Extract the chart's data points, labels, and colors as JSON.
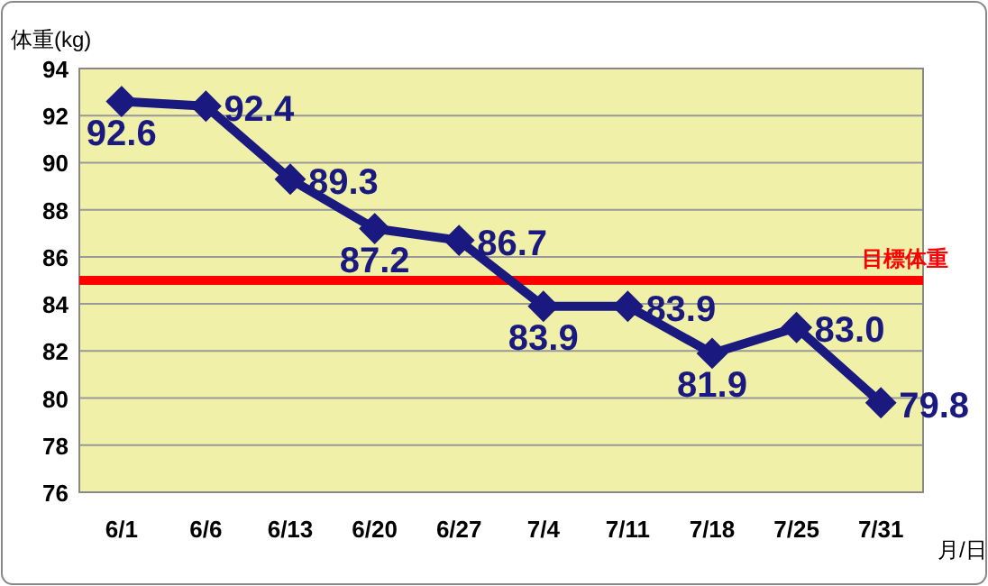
{
  "chart_data": {
    "type": "line",
    "ylabel": "体重(kg)",
    "xlabel": "月/日",
    "categories": [
      "6/1",
      "6/6",
      "6/13",
      "6/20",
      "6/27",
      "7/4",
      "7/11",
      "7/18",
      "7/25",
      "7/31"
    ],
    "series": [
      {
        "color": "#191980",
        "values": [
          92.6,
          92.4,
          89.3,
          87.2,
          86.7,
          83.9,
          83.9,
          81.9,
          83.0,
          79.8
        ],
        "value_labels": [
          "92.6",
          "92.4",
          "89.3",
          "87.2",
          "86.7",
          "83.9",
          "83.9",
          "81.9",
          "83.0",
          "79.8"
        ]
      }
    ],
    "ylim": [
      76,
      94
    ],
    "yticks": [
      76,
      78,
      80,
      82,
      84,
      86,
      88,
      90,
      92,
      94
    ],
    "grid": "y",
    "marker": "diamond",
    "line_style": "solid",
    "ref_lines": [
      {
        "axis": "y",
        "value": 85,
        "label": "目標体重",
        "color": "#ff0000"
      }
    ]
  }
}
